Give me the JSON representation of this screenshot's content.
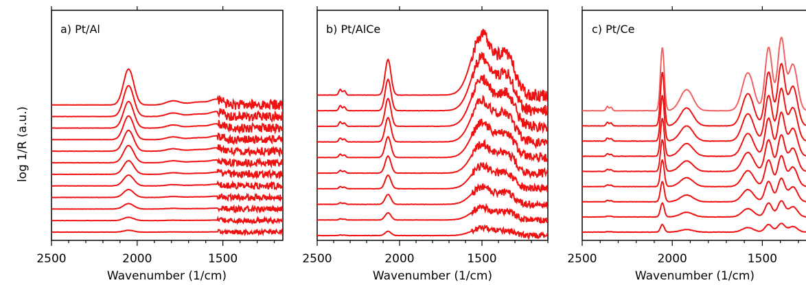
{
  "figure": {
    "ylabel": "log 1/R (a.u.)",
    "colors": {
      "trace": "#ee1111",
      "trace_top_c": "#f06060",
      "axes": "#000000",
      "background": "#ffffff"
    }
  },
  "chart_data": [
    {
      "type": "line",
      "title": "a) Pt/Al",
      "xlabel": "Wavenumber (1/cm)",
      "ylabel": "log 1/R (a.u.)",
      "xlim": [
        2500,
        1150
      ],
      "x_reversed": true,
      "xticks": [
        2500,
        2000,
        1500
      ],
      "xtick_labels": [
        "2500",
        "2000",
        "1500"
      ],
      "grid": false,
      "series_count": 12,
      "series_offset_step": 0.2,
      "peaks": [
        {
          "x": 2050,
          "height": 0.62,
          "width": 42
        },
        {
          "x": 1790,
          "height": 0.07,
          "width": 55
        },
        {
          "x": 1640,
          "height": 0.05,
          "width": 80
        },
        {
          "x": 1535,
          "height": 0.09,
          "width": 50
        }
      ],
      "noise_region": [
        1530,
        1150
      ],
      "peak_scale_top_to_bottom": [
        1.0,
        0.86,
        0.74,
        0.66,
        0.58,
        0.48,
        0.38,
        0.3,
        0.22,
        0.15,
        0.09,
        0.05
      ]
    },
    {
      "type": "line",
      "title": "b) Pt/AlCe",
      "xlabel": "Wavenumber (1/cm)",
      "ylabel": "",
      "xlim": [
        2500,
        1100
      ],
      "x_reversed": true,
      "xticks": [
        2500,
        2000,
        1500
      ],
      "xtick_labels": [
        "2500",
        "2000",
        "1500"
      ],
      "grid": false,
      "series_count": 10,
      "series_offset_step": 0.22,
      "peaks": [
        {
          "x": 2360,
          "height": 0.08,
          "width": 12
        },
        {
          "x": 2335,
          "height": 0.06,
          "width": 12
        },
        {
          "x": 2070,
          "height": 0.5,
          "width": 25
        },
        {
          "x": 1500,
          "height": 0.85,
          "width": 90
        },
        {
          "x": 1350,
          "height": 0.55,
          "width": 70
        }
      ],
      "noise_region": [
        1560,
        1100
      ],
      "peak_scale_top_to_bottom": [
        1.0,
        0.88,
        0.78,
        0.68,
        0.58,
        0.48,
        0.38,
        0.28,
        0.2,
        0.12
      ]
    },
    {
      "type": "line",
      "title": "c) Pt/Ce",
      "xlabel": "Wavenumber (1/cm)",
      "ylabel": "",
      "xlim": [
        2500,
        1250
      ],
      "x_reversed": true,
      "xticks": [
        2500,
        2000,
        1500
      ],
      "xtick_labels": [
        "2500",
        "2000",
        "1500"
      ],
      "grid": false,
      "series_count": 9,
      "series_offset_step": 0.18,
      "peaks": [
        {
          "x": 2360,
          "height": 0.05,
          "width": 10
        },
        {
          "x": 2340,
          "height": 0.04,
          "width": 10
        },
        {
          "x": 2055,
          "height": 0.75,
          "width": 15
        },
        {
          "x": 1920,
          "height": 0.25,
          "width": 50
        },
        {
          "x": 1580,
          "height": 0.45,
          "width": 45
        },
        {
          "x": 1465,
          "height": 0.75,
          "width": 28
        },
        {
          "x": 1395,
          "height": 0.85,
          "width": 28
        },
        {
          "x": 1330,
          "height": 0.55,
          "width": 35
        }
      ],
      "noise_region": [],
      "peak_scale_top_to_bottom": [
        1.0,
        0.85,
        0.72,
        0.6,
        0.5,
        0.42,
        0.32,
        0.22,
        0.12
      ]
    }
  ]
}
